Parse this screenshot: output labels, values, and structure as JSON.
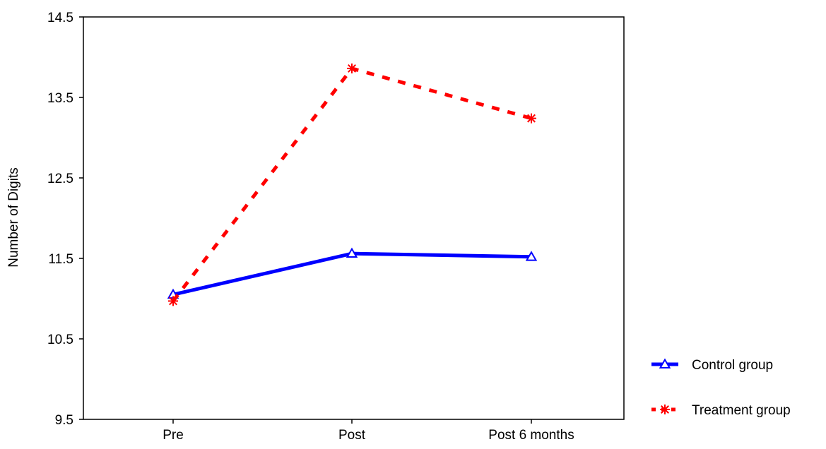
{
  "chart_data": {
    "type": "line",
    "title": "",
    "xlabel": "",
    "ylabel": "Number of Digits",
    "categories": [
      "Pre",
      "Post",
      "Post 6 months"
    ],
    "ylim": [
      9.5,
      14.5
    ],
    "yticks": [
      "9.5",
      "10.5",
      "11.5",
      "12.5",
      "13.5",
      "14.5"
    ],
    "grid": false,
    "legend_position": "bottom-right outside plot",
    "series": [
      {
        "name": "Control group",
        "values": [
          11.05,
          11.56,
          11.52
        ],
        "color": "#0000ff",
        "line_style": "solid",
        "marker": "triangle-icon"
      },
      {
        "name": "Treatment group",
        "values": [
          10.97,
          13.86,
          13.24
        ],
        "color": "#ff0000",
        "line_style": "dashed",
        "marker": "asterisk-icon"
      }
    ]
  }
}
